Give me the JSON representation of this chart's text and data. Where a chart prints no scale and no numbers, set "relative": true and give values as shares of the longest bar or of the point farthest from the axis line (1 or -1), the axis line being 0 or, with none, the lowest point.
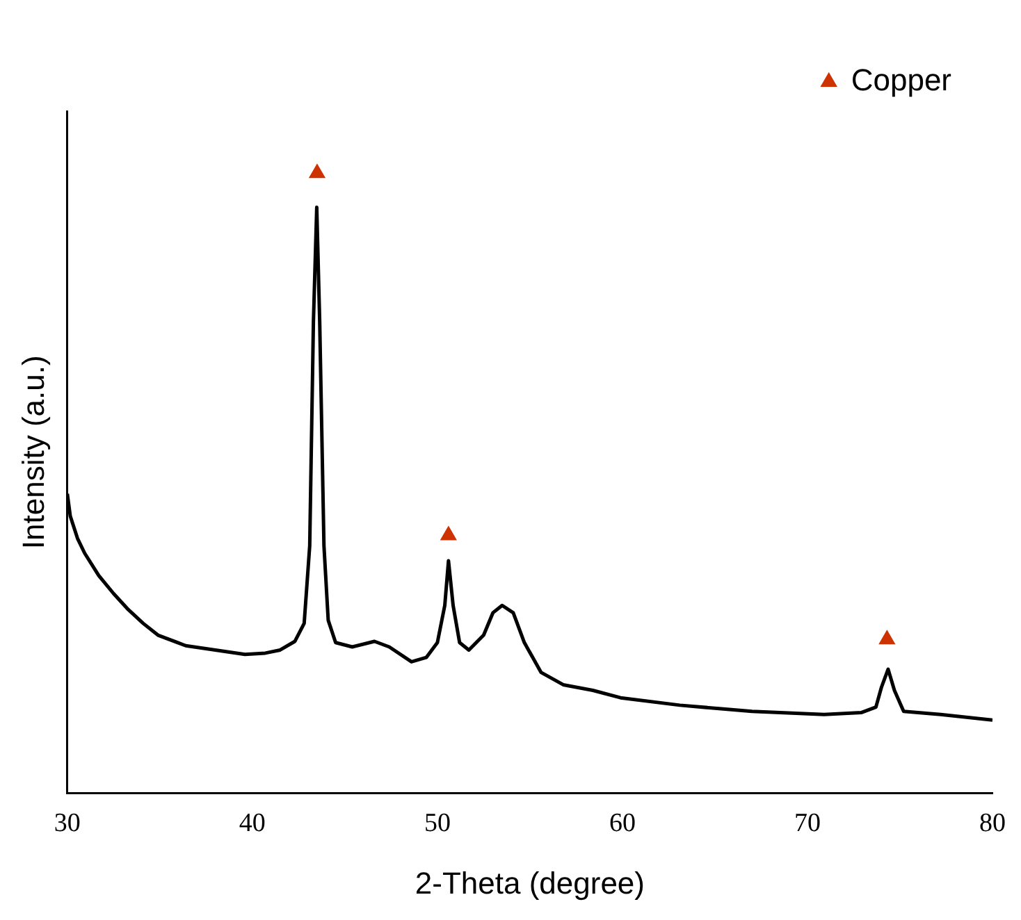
{
  "chart_data": {
    "type": "line",
    "xlabel": "2-Theta (degree)",
    "ylabel": "Intensity (a.u.)",
    "relative": true,
    "xlim": [
      30,
      80
    ],
    "xticks": [
      30,
      40,
      50,
      60,
      70,
      80
    ],
    "grid": false,
    "legend": "top right",
    "series": [
      {
        "color": "#000000",
        "marker": "none",
        "x": [
          30,
          30.16,
          30.55,
          30.94,
          31.7,
          32.5,
          33.3,
          34.1,
          34.9,
          36.4,
          38.0,
          39.6,
          40.7,
          41.5,
          42.3,
          42.8,
          43.1,
          43.3,
          43.48,
          43.64,
          43.87,
          44.1,
          44.5,
          45.4,
          46.6,
          47.4,
          48.6,
          49.4,
          50.0,
          50.4,
          50.6,
          50.85,
          51.2,
          51.7,
          52.5,
          53.0,
          53.5,
          54.1,
          54.7,
          55.6,
          56.8,
          58.4,
          59.9,
          63.1,
          67.0,
          70.9,
          72.9,
          73.7,
          74.0,
          74.36,
          74.7,
          75.2,
          77.2,
          80.0
        ],
        "values": [
          0.483,
          0.447,
          0.411,
          0.387,
          0.351,
          0.322,
          0.296,
          0.274,
          0.255,
          0.238,
          0.231,
          0.224,
          0.226,
          0.231,
          0.245,
          0.274,
          0.399,
          0.76,
          0.945,
          0.76,
          0.399,
          0.279,
          0.243,
          0.236,
          0.245,
          0.236,
          0.212,
          0.219,
          0.243,
          0.303,
          0.375,
          0.303,
          0.243,
          0.231,
          0.255,
          0.291,
          0.303,
          0.291,
          0.243,
          0.195,
          0.175,
          0.166,
          0.154,
          0.142,
          0.132,
          0.127,
          0.13,
          0.139,
          0.171,
          0.2,
          0.166,
          0.132,
          0.127,
          0.118
        ]
      },
      {
        "type": "scatter",
        "name": "Copper",
        "color": "#cc3300",
        "marker": "triangle",
        "x": [
          43.5,
          50.6,
          74.3
        ],
        "values": [
          1.0,
          0.416,
          0.248
        ]
      }
    ]
  }
}
